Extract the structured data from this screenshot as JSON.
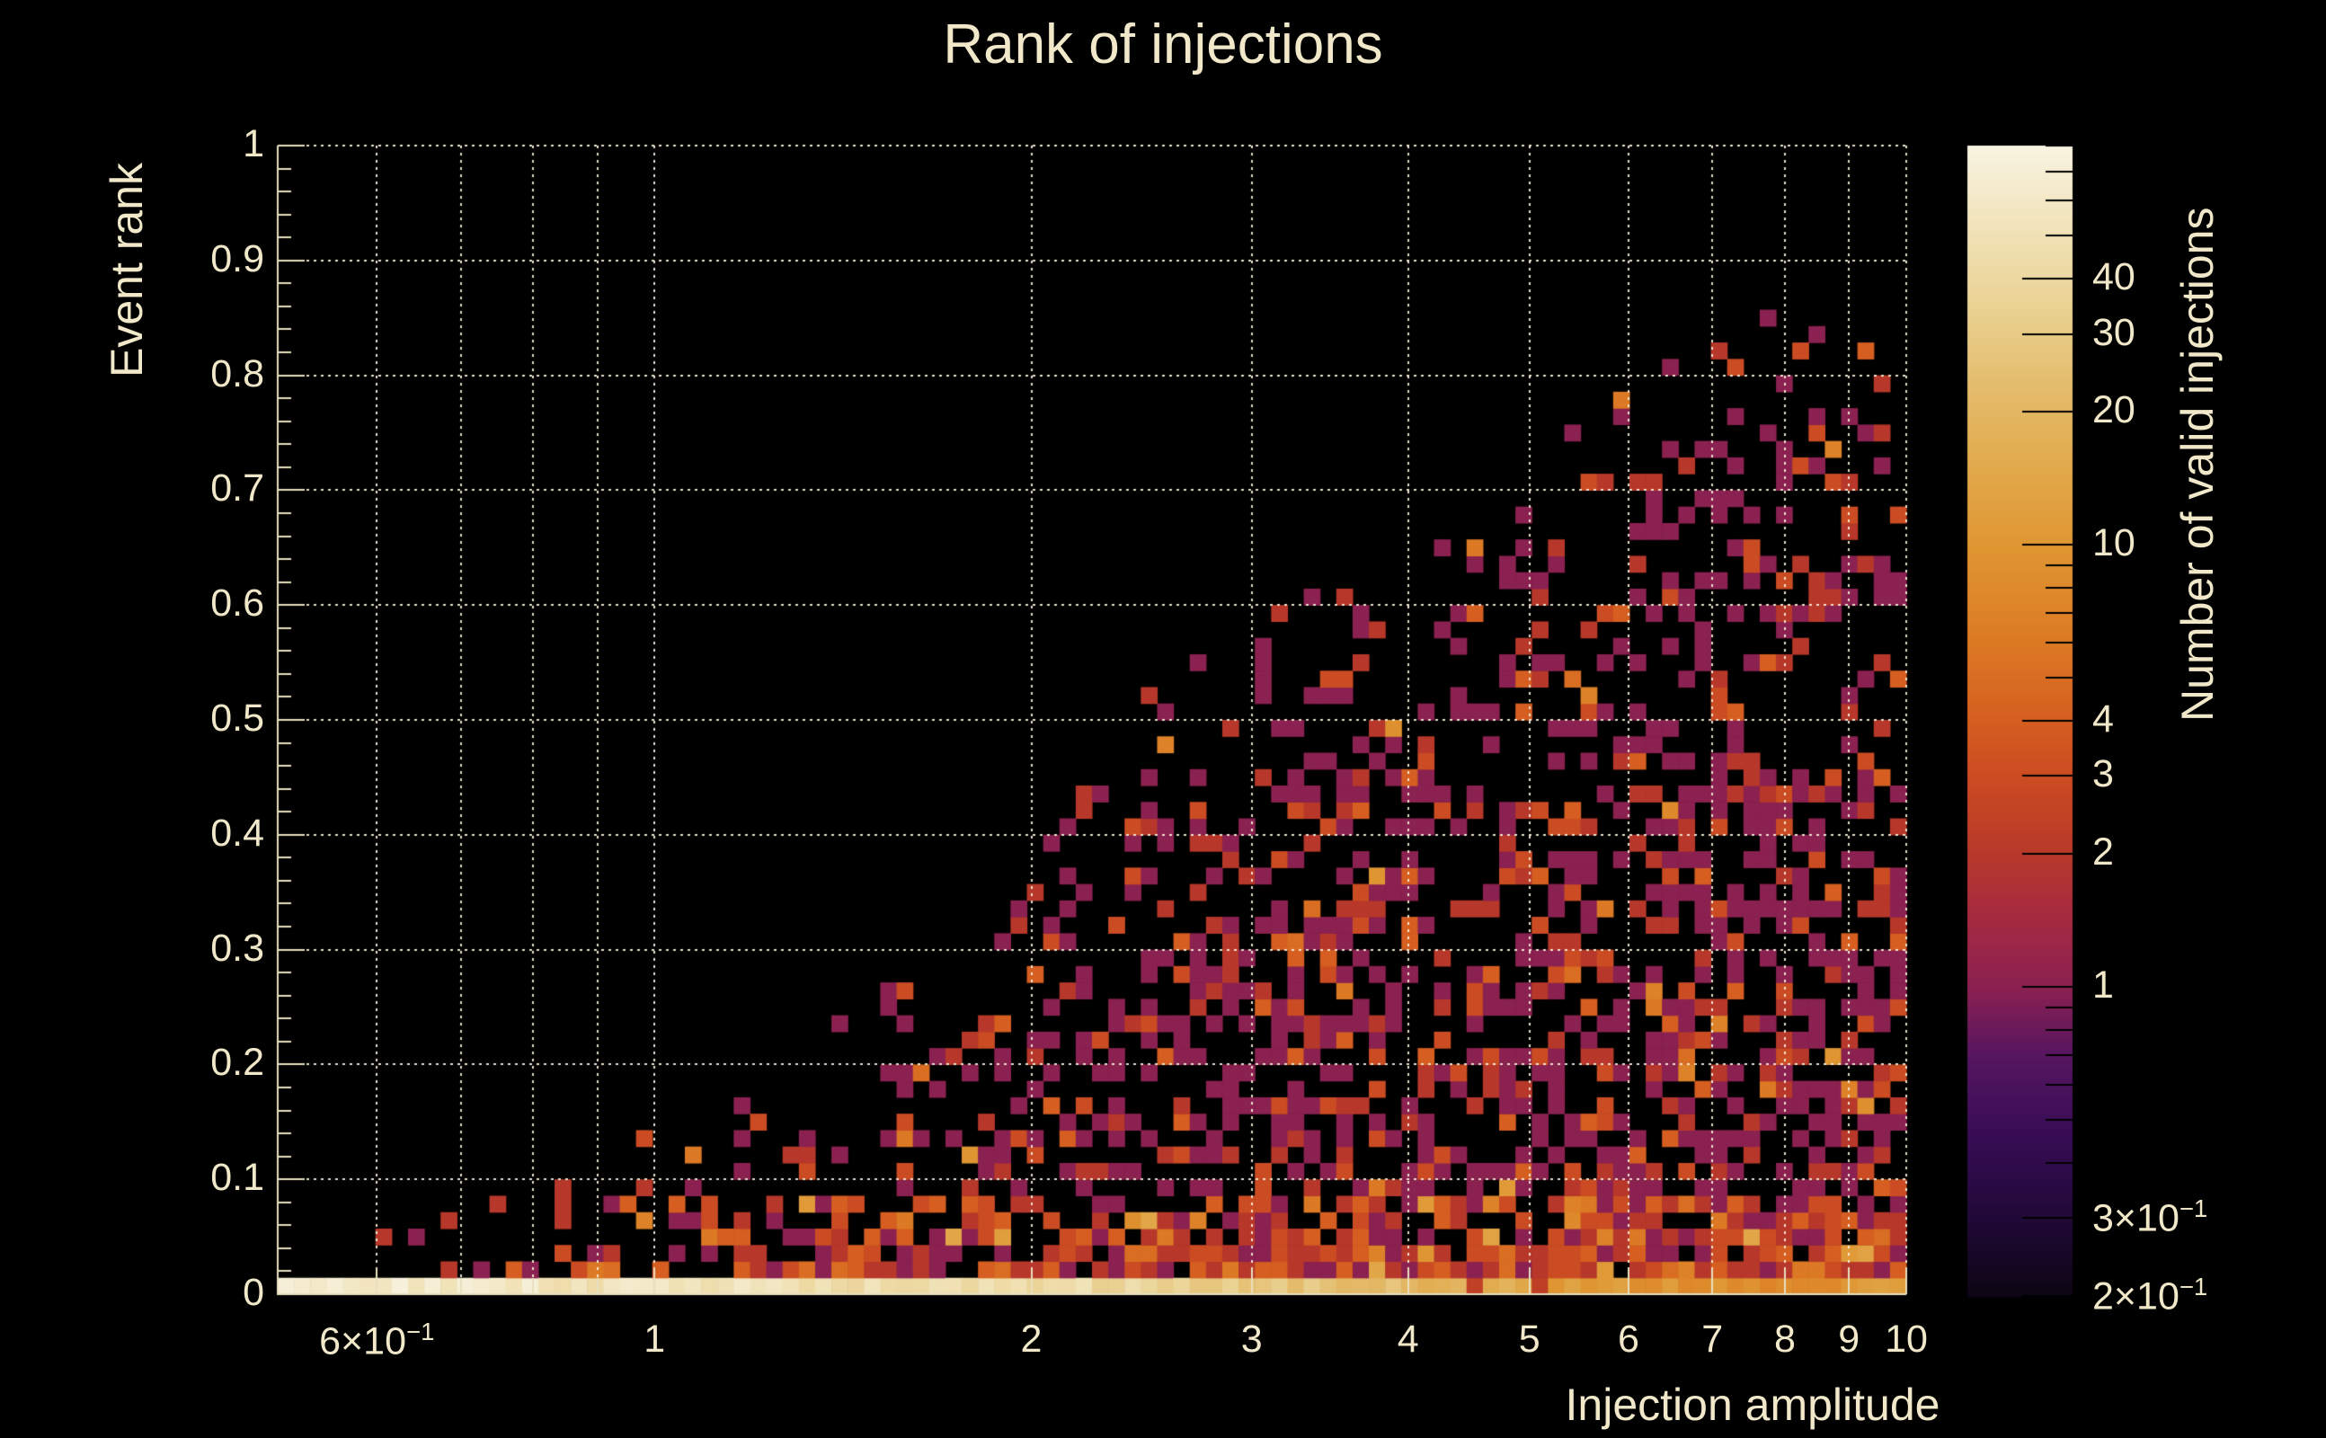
{
  "chart_data": {
    "type": "heatmap",
    "title": "Rank of injections",
    "colors": {
      "background": "#000000",
      "foreground": "#f1e8ca",
      "grid": "rgba(245,238,218,0.95)",
      "tick": "#e8dfc0"
    },
    "x_axis": {
      "title": "Injection amplitude",
      "scale": "log",
      "range": [
        0.5,
        10
      ],
      "grid_values": [
        0.6,
        0.7,
        0.8,
        0.9,
        1,
        2,
        3,
        4,
        5,
        6,
        7,
        8,
        9,
        10
      ],
      "ticks": [
        {
          "value": 0.6,
          "main": "6×10",
          "sup": "−1"
        },
        {
          "value": 1,
          "main": "1",
          "sup": ""
        },
        {
          "value": 2,
          "main": "2",
          "sup": ""
        },
        {
          "value": 3,
          "main": "3",
          "sup": ""
        },
        {
          "value": 4,
          "main": "4",
          "sup": ""
        },
        {
          "value": 5,
          "main": "5",
          "sup": ""
        },
        {
          "value": 6,
          "main": "6",
          "sup": ""
        },
        {
          "value": 7,
          "main": "7",
          "sup": ""
        },
        {
          "value": 8,
          "main": "8",
          "sup": ""
        },
        {
          "value": 9,
          "main": "9",
          "sup": ""
        },
        {
          "value": 10,
          "main": "10",
          "sup": ""
        }
      ]
    },
    "y_axis": {
      "title": "Event rank",
      "scale": "linear",
      "range": [
        0,
        1
      ],
      "grid_step": 0.1,
      "minor_step": 0.02,
      "ticks": [
        {
          "value": 1,
          "label": "1"
        },
        {
          "value": 0.9,
          "label": "0.9"
        },
        {
          "value": 0.8,
          "label": "0.8"
        },
        {
          "value": 0.7,
          "label": "0.7"
        },
        {
          "value": 0.6,
          "label": "0.6"
        },
        {
          "value": 0.5,
          "label": "0.5"
        },
        {
          "value": 0.4,
          "label": "0.4"
        },
        {
          "value": 0.3,
          "label": "0.3"
        },
        {
          "value": 0.2,
          "label": "0.2"
        },
        {
          "value": 0.1,
          "label": "0.1"
        },
        {
          "value": 0,
          "label": "0"
        }
      ]
    },
    "colorbar": {
      "title": "Number of valid injections",
      "scale": "log",
      "range": [
        0.2,
        80
      ],
      "ticks": [
        {
          "value": 40,
          "main": "40",
          "sup": ""
        },
        {
          "value": 30,
          "main": "30",
          "sup": ""
        },
        {
          "value": 20,
          "main": "20",
          "sup": ""
        },
        {
          "value": 10,
          "main": "10",
          "sup": ""
        },
        {
          "value": 4,
          "main": "4",
          "sup": ""
        },
        {
          "value": 3,
          "main": "3",
          "sup": ""
        },
        {
          "value": 2,
          "main": "2",
          "sup": ""
        },
        {
          "value": 1,
          "main": "1",
          "sup": ""
        },
        {
          "value": 0.3,
          "main": "3×10",
          "sup": "−1"
        },
        {
          "value": 0.2,
          "main": "2×10",
          "sup": "−1"
        }
      ],
      "minor_ticks": [
        80,
        70,
        60,
        50,
        9,
        8,
        7,
        6,
        5,
        0.9,
        0.8,
        0.7,
        0.6,
        0.5,
        0.4
      ],
      "gradient": [
        [
          0.0,
          "#0d0513"
        ],
        [
          0.07,
          "#210938"
        ],
        [
          0.14,
          "#370c55"
        ],
        [
          0.21,
          "#571660"
        ],
        [
          0.27,
          "#8c2150"
        ],
        [
          0.33,
          "#a52a40"
        ],
        [
          0.39,
          "#b93a28"
        ],
        [
          0.45,
          "#cb4b22"
        ],
        [
          0.5,
          "#d55e20"
        ],
        [
          0.57,
          "#dc7a24"
        ],
        [
          0.65,
          "#df9531"
        ],
        [
          0.72,
          "#e1a94b"
        ],
        [
          0.79,
          "#e4bc6c"
        ],
        [
          0.86,
          "#ead293"
        ],
        [
          0.92,
          "#f0e1b4"
        ],
        [
          1.0,
          "#f8f3e2"
        ]
      ]
    },
    "heatmap": {
      "nx": 100,
      "ny": 70,
      "x_range": [
        0.5,
        10
      ],
      "y_range": [
        0,
        1
      ],
      "seed": 20,
      "envelope_max_rank_vs_amplitude": [
        [
          0.5,
          0.02
        ],
        [
          0.55,
          0.03
        ],
        [
          0.6,
          0.075
        ],
        [
          0.7,
          0.09
        ],
        [
          0.8,
          0.105
        ],
        [
          0.9,
          0.12
        ],
        [
          1.0,
          0.145
        ],
        [
          1.1,
          0.17
        ],
        [
          1.2,
          0.2
        ],
        [
          1.35,
          0.225
        ],
        [
          1.5,
          0.3
        ],
        [
          1.7,
          0.29
        ],
        [
          1.9,
          0.33
        ],
        [
          2.1,
          0.46
        ],
        [
          2.3,
          0.52
        ],
        [
          2.6,
          0.56
        ],
        [
          3.0,
          0.58
        ],
        [
          3.4,
          0.62
        ],
        [
          3.9,
          0.61
        ],
        [
          4.4,
          0.7
        ],
        [
          5.0,
          0.77
        ],
        [
          5.6,
          0.8
        ],
        [
          6.2,
          0.83
        ],
        [
          7.0,
          0.875
        ],
        [
          7.8,
          0.85
        ],
        [
          8.6,
          0.86
        ],
        [
          9.3,
          0.875
        ],
        [
          10.0,
          0.875
        ]
      ],
      "scatter_fill_density_vs_amplitude": [
        [
          0.5,
          0.04
        ],
        [
          0.6,
          0.1
        ],
        [
          0.8,
          0.16
        ],
        [
          1.0,
          0.22
        ],
        [
          1.3,
          0.3
        ],
        [
          1.6,
          0.33
        ],
        [
          2.0,
          0.38
        ],
        [
          2.5,
          0.43
        ],
        [
          3.0,
          0.48
        ],
        [
          4.0,
          0.46
        ],
        [
          5.0,
          0.43
        ],
        [
          6.0,
          0.46
        ],
        [
          7.0,
          0.5
        ],
        [
          8.0,
          0.52
        ],
        [
          9.0,
          0.53
        ],
        [
          10.0,
          0.55
        ]
      ],
      "bottom_row_count_vs_amplitude": [
        [
          0.5,
          62
        ],
        [
          0.8,
          57
        ],
        [
          1.0,
          52
        ],
        [
          1.3,
          50
        ],
        [
          1.6,
          46
        ],
        [
          2.0,
          44
        ],
        [
          2.4,
          38
        ],
        [
          2.8,
          34
        ],
        [
          3.2,
          28
        ],
        [
          3.6,
          24
        ],
        [
          4.0,
          21
        ],
        [
          4.5,
          17
        ],
        [
          5.0,
          13
        ],
        [
          5.5,
          11
        ],
        [
          6.0,
          10
        ],
        [
          6.5,
          9
        ],
        [
          7.0,
          9
        ],
        [
          7.5,
          8
        ],
        [
          8.0,
          9
        ],
        [
          8.5,
          9
        ],
        [
          9.0,
          10
        ],
        [
          9.5,
          11
        ],
        [
          10.0,
          12
        ]
      ],
      "scatter_count_levels": [
        1,
        2,
        3,
        4,
        5,
        8
      ],
      "low_band_rank_limit": 0.045
    }
  }
}
